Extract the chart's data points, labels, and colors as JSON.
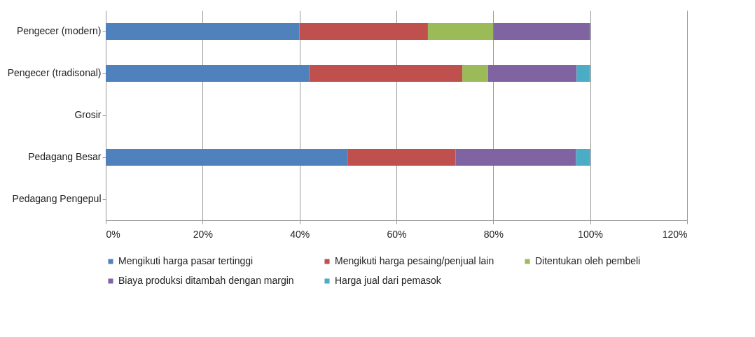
{
  "chart_data": {
    "type": "bar",
    "orientation": "horizontal",
    "stacked": true,
    "categories": [
      "Pengecer (modern)",
      "Pengecer (tradisonal)",
      "Grosir",
      "Pedagang Besar",
      "Pedagang Pengepul"
    ],
    "series": [
      {
        "name": "Mengikuti harga pasar tertinggi",
        "color": "#4f81bd",
        "values": [
          40,
          42,
          0,
          50,
          0
        ]
      },
      {
        "name": "Mengikuti harga pesaing/penjual lain",
        "color": "#c0504d",
        "values": [
          26.5,
          31.6,
          0,
          22.2,
          0
        ]
      },
      {
        "name": "Ditentukan oleh pembeli",
        "color": "#9bbb59",
        "values": [
          13.5,
          5.3,
          0,
          0,
          0
        ]
      },
      {
        "name": "Biaya produksi ditambah dengan margin",
        "color": "#8064a2",
        "values": [
          20,
          18.3,
          0,
          24.9,
          0
        ]
      },
      {
        "name": "Harga jual dari pemasok",
        "color": "#4bacc6",
        "values": [
          0,
          2.8,
          0,
          2.9,
          0
        ]
      }
    ],
    "xlim": [
      0,
      120
    ],
    "xticks": [
      {
        "value": 0,
        "label": "0%"
      },
      {
        "value": 20,
        "label": "20%"
      },
      {
        "value": 40,
        "label": "40%"
      },
      {
        "value": 60,
        "label": "60%"
      },
      {
        "value": 80,
        "label": "80%"
      },
      {
        "value": 100,
        "label": "100%"
      },
      {
        "value": 120,
        "label": "120%"
      }
    ],
    "grid": "x",
    "legend": "bottom"
  }
}
